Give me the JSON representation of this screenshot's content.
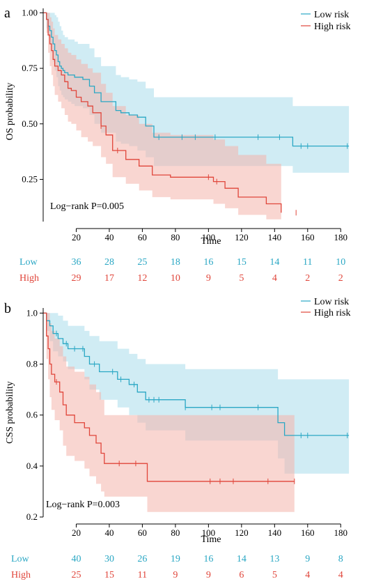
{
  "colors": {
    "low": "#2AA7C4",
    "high": "#E0453A",
    "low_fill": "#A9DCEB",
    "high_fill": "#F4B4AC"
  },
  "chart_data": [
    {
      "panel_label": "a",
      "type": "line",
      "step": true,
      "ylabel": "OS probability",
      "xlabel": "Time",
      "xlim": [
        0,
        190
      ],
      "ylim": [
        0.06,
        1.02
      ],
      "xticks": [
        20,
        40,
        60,
        80,
        100,
        120,
        140,
        160,
        180
      ],
      "yticks": [
        0.25,
        0.5,
        0.75,
        1.0
      ],
      "ytick_labels": [
        "0.25",
        "0.50",
        "0.75",
        "1.00"
      ],
      "legend": {
        "position": "top-right"
      },
      "annotation": "Log−rank  P=0.005",
      "series": [
        {
          "name": "Low risk",
          "color_key": "low",
          "x": [
            0,
            2,
            3,
            4,
            5,
            6,
            7,
            8,
            9,
            10,
            11,
            12,
            13,
            15,
            17,
            19,
            21,
            24,
            28,
            31,
            35,
            44,
            47,
            52,
            57,
            62,
            67,
            151,
            185
          ],
          "y": [
            1.0,
            0.97,
            0.94,
            0.92,
            0.89,
            0.86,
            0.83,
            0.81,
            0.78,
            0.76,
            0.75,
            0.74,
            0.73,
            0.72,
            0.72,
            0.71,
            0.71,
            0.7,
            0.67,
            0.64,
            0.6,
            0.56,
            0.55,
            0.54,
            0.53,
            0.49,
            0.44,
            0.4,
            0.4
          ],
          "lower": [
            1.0,
            0.93,
            0.89,
            0.86,
            0.82,
            0.78,
            0.74,
            0.71,
            0.67,
            0.65,
            0.63,
            0.62,
            0.61,
            0.6,
            0.59,
            0.58,
            0.58,
            0.57,
            0.54,
            0.5,
            0.46,
            0.42,
            0.41,
            0.4,
            0.38,
            0.35,
            0.31,
            0.28,
            0.28
          ],
          "upper": [
            1.0,
            1.0,
            1.0,
            1.0,
            1.0,
            1.0,
            0.99,
            0.98,
            0.96,
            0.94,
            0.92,
            0.9,
            0.89,
            0.88,
            0.88,
            0.87,
            0.86,
            0.86,
            0.84,
            0.8,
            0.76,
            0.72,
            0.71,
            0.7,
            0.69,
            0.66,
            0.62,
            0.58,
            0.58
          ],
          "censors_x": [
            70,
            84,
            92,
            104,
            130,
            143,
            156,
            160,
            184
          ],
          "at_risk": [
            36,
            28,
            25,
            18,
            16,
            15,
            14,
            11,
            10
          ]
        },
        {
          "name": "High risk",
          "color_key": "high",
          "x": [
            0,
            2,
            3,
            4,
            5,
            6,
            7,
            9,
            11,
            13,
            15,
            17,
            20,
            23,
            27,
            30,
            35,
            38,
            42,
            50,
            58,
            66,
            77,
            103,
            110,
            118,
            135,
            141,
            144
          ],
          "y": [
            1.0,
            0.97,
            0.9,
            0.86,
            0.83,
            0.79,
            0.76,
            0.74,
            0.72,
            0.69,
            0.66,
            0.65,
            0.62,
            0.6,
            0.58,
            0.55,
            0.49,
            0.45,
            0.38,
            0.34,
            0.31,
            0.27,
            0.26,
            0.24,
            0.21,
            0.17,
            0.14,
            0.14,
            0.1
          ],
          "lower": [
            1.0,
            0.91,
            0.82,
            0.76,
            0.72,
            0.67,
            0.63,
            0.6,
            0.57,
            0.54,
            0.51,
            0.5,
            0.47,
            0.44,
            0.42,
            0.4,
            0.35,
            0.32,
            0.26,
            0.23,
            0.2,
            0.17,
            0.16,
            0.14,
            0.12,
            0.09,
            0.07,
            0.07,
            0.05
          ],
          "upper": [
            1.0,
            1.0,
            1.0,
            0.98,
            0.96,
            0.93,
            0.9,
            0.88,
            0.86,
            0.84,
            0.82,
            0.81,
            0.79,
            0.77,
            0.75,
            0.73,
            0.68,
            0.64,
            0.58,
            0.54,
            0.5,
            0.46,
            0.45,
            0.43,
            0.4,
            0.36,
            0.32,
            0.32,
            0.3
          ],
          "censors_x": [
            35,
            45,
            100,
            105,
            153
          ],
          "at_risk": [
            29,
            17,
            12,
            10,
            9,
            5,
            4,
            2,
            2
          ]
        }
      ]
    },
    {
      "panel_label": "b",
      "type": "line",
      "step": true,
      "ylabel": "CSS probability",
      "xlabel": "Time",
      "xlim": [
        0,
        190
      ],
      "ylim": [
        0.2,
        1.02
      ],
      "xticks": [
        20,
        40,
        60,
        80,
        100,
        120,
        140,
        160,
        180
      ],
      "yticks": [
        0.2,
        0.4,
        0.6,
        0.8,
        1.0
      ],
      "ytick_labels": [
        "0.2",
        "0.4",
        "0.6",
        "0.8",
        "1.0"
      ],
      "legend": {
        "position": "top-right"
      },
      "annotation": "Log−rank  P=0.003",
      "series": [
        {
          "name": "Low risk",
          "color_key": "low",
          "x": [
            0,
            2,
            4,
            6,
            9,
            12,
            15,
            25,
            28,
            34,
            45,
            52,
            57,
            62,
            86,
            142,
            146,
            185
          ],
          "y": [
            1.0,
            0.97,
            0.95,
            0.92,
            0.9,
            0.88,
            0.86,
            0.83,
            0.8,
            0.77,
            0.74,
            0.72,
            0.69,
            0.66,
            0.63,
            0.57,
            0.52,
            0.52
          ],
          "lower": [
            1.0,
            0.93,
            0.89,
            0.85,
            0.83,
            0.81,
            0.78,
            0.74,
            0.7,
            0.66,
            0.63,
            0.6,
            0.57,
            0.54,
            0.5,
            0.43,
            0.37,
            0.37
          ],
          "upper": [
            1.0,
            1.0,
            1.0,
            1.0,
            0.99,
            0.97,
            0.95,
            0.93,
            0.91,
            0.89,
            0.86,
            0.84,
            0.82,
            0.8,
            0.78,
            0.74,
            0.74,
            0.74
          ],
          "censors_x": [
            8,
            14,
            19,
            24,
            31,
            42,
            47,
            55,
            64,
            67,
            70,
            86,
            102,
            107,
            130,
            156,
            160,
            184
          ],
          "at_risk": [
            40,
            30,
            26,
            19,
            16,
            14,
            13,
            9,
            8
          ]
        },
        {
          "name": "High risk",
          "color_key": "high",
          "x": [
            0,
            2,
            3,
            4,
            5,
            7,
            10,
            12,
            14,
            19,
            25,
            28,
            32,
            35,
            37,
            63,
            152
          ],
          "y": [
            1.0,
            0.91,
            0.86,
            0.8,
            0.76,
            0.73,
            0.69,
            0.64,
            0.6,
            0.57,
            0.55,
            0.52,
            0.49,
            0.45,
            0.41,
            0.34,
            0.34
          ],
          "lower": [
            1.0,
            0.82,
            0.74,
            0.67,
            0.62,
            0.58,
            0.54,
            0.48,
            0.44,
            0.42,
            0.39,
            0.36,
            0.33,
            0.3,
            0.28,
            0.22,
            0.22
          ],
          "upper": [
            1.0,
            1.0,
            1.0,
            0.96,
            0.93,
            0.9,
            0.87,
            0.83,
            0.79,
            0.77,
            0.75,
            0.72,
            0.69,
            0.66,
            0.6,
            0.6,
            0.6
          ],
          "censors_x": [
            8,
            46,
            56,
            101,
            107,
            115,
            136,
            152
          ],
          "at_risk": [
            25,
            15,
            11,
            9,
            9,
            6,
            5,
            4,
            4
          ]
        }
      ]
    }
  ],
  "risk_table": {
    "low_label": "Low",
    "high_label": "High"
  }
}
